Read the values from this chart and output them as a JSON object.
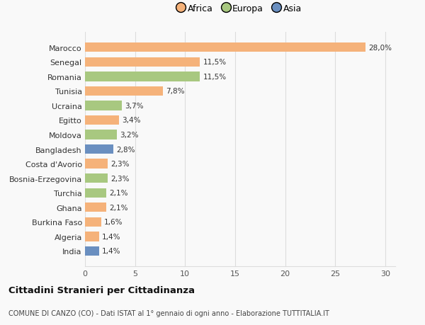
{
  "categories": [
    "India",
    "Algeria",
    "Burkina Faso",
    "Ghana",
    "Turchia",
    "Bosnia-Erzegovina",
    "Costa d'Avorio",
    "Bangladesh",
    "Moldova",
    "Egitto",
    "Ucraina",
    "Tunisia",
    "Romania",
    "Senegal",
    "Marocco"
  ],
  "values": [
    1.4,
    1.4,
    1.6,
    2.1,
    2.1,
    2.3,
    2.3,
    2.8,
    3.2,
    3.4,
    3.7,
    7.8,
    11.5,
    11.5,
    28.0
  ],
  "colors": [
    "#6a8fc0",
    "#f5b27a",
    "#f5b27a",
    "#f5b27a",
    "#a8c880",
    "#a8c880",
    "#f5b27a",
    "#6a8fc0",
    "#a8c880",
    "#f5b27a",
    "#a8c880",
    "#f5b27a",
    "#a8c880",
    "#f5b27a",
    "#f5b27a"
  ],
  "labels": [
    "1,4%",
    "1,4%",
    "1,6%",
    "2,1%",
    "2,1%",
    "2,3%",
    "2,3%",
    "2,8%",
    "3,2%",
    "3,4%",
    "3,7%",
    "7,8%",
    "11,5%",
    "11,5%",
    "28,0%"
  ],
  "legend": [
    {
      "label": "Africa",
      "color": "#f5b27a"
    },
    {
      "label": "Europa",
      "color": "#a8c880"
    },
    {
      "label": "Asia",
      "color": "#6a8fc0"
    }
  ],
  "xlim": [
    0,
    31
  ],
  "xticks": [
    0,
    5,
    10,
    15,
    20,
    25,
    30
  ],
  "title": "Cittadini Stranieri per Cittadinanza",
  "subtitle": "COMUNE DI CANZO (CO) - Dati ISTAT al 1° gennaio di ogni anno - Elaborazione TUTTITALIA.IT",
  "bg_color": "#f9f9f9",
  "grid_color": "#dddddd"
}
